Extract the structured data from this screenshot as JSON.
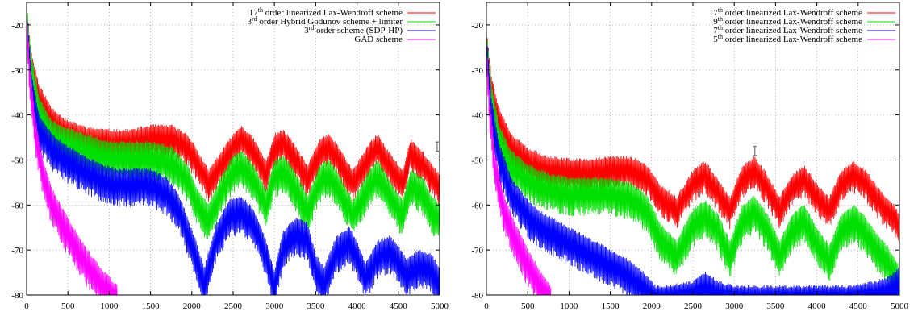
{
  "chart_data": [
    {
      "type": "line",
      "title": "",
      "xlabel": "",
      "ylabel": "",
      "xlim": [
        0,
        5000
      ],
      "ylim": [
        -80,
        -15
      ],
      "x_ticks": [
        "0",
        "500",
        "1000",
        "1500",
        "2000",
        "2500",
        "3000",
        "3500",
        "4000",
        "4500",
        "5000"
      ],
      "y_ticks": [
        "-20",
        "-30",
        "-40",
        "-50",
        "-60",
        "-70",
        "-80"
      ],
      "grid": true,
      "legend_position": "top-right",
      "error_bar": {
        "x": 4970,
        "y_low": -48,
        "y_high": -46
      },
      "series": [
        {
          "name_parts": [
            [
              "17",
              ""
            ],
            [
              "th",
              "sup"
            ],
            [
              " order linearized Lax-Wendroff scheme",
              ""
            ]
          ],
          "color": "#ff0000",
          "x": [
            0,
            60,
            150,
            300,
            500,
            750,
            1000,
            1250,
            1500,
            1750,
            1950,
            2050,
            2200,
            2350,
            2500,
            2600,
            2750,
            2900,
            3000,
            3100,
            3200,
            3400,
            3550,
            3650,
            3750,
            3950,
            4150,
            4250,
            4350,
            4550,
            4650,
            4800,
            4880,
            5000
          ],
          "y": [
            -17,
            -28,
            -35,
            -40,
            -43,
            -44.5,
            -45,
            -45,
            -44,
            -44,
            -46,
            -49,
            -54,
            -50,
            -46,
            -44,
            -47,
            -52,
            -46,
            -45,
            -47,
            -53,
            -47,
            -46,
            -48,
            -54,
            -48,
            -46,
            -49,
            -54,
            -47,
            -50,
            -52,
            -55
          ]
        },
        {
          "name_parts": [
            [
              "3",
              ""
            ],
            [
              "rd",
              "sup"
            ],
            [
              " order Hybrid Godunov scheme + limiter",
              ""
            ]
          ],
          "color": "#00e000",
          "x": [
            0,
            60,
            150,
            300,
            500,
            750,
            1000,
            1250,
            1500,
            1750,
            1950,
            2050,
            2200,
            2350,
            2500,
            2600,
            2750,
            2900,
            3000,
            3100,
            3200,
            3400,
            3550,
            3650,
            3750,
            3950,
            4150,
            4250,
            4350,
            4550,
            4650,
            4800,
            4900,
            5000
          ],
          "y": [
            -17,
            -29,
            -38,
            -43,
            -45,
            -46.5,
            -48,
            -48,
            -48,
            -49,
            -53,
            -58,
            -62,
            -56,
            -51,
            -50,
            -53,
            -59,
            -52,
            -51,
            -53,
            -60,
            -53,
            -52,
            -54,
            -61,
            -54,
            -52,
            -55,
            -61,
            -54,
            -56,
            -60,
            -62
          ]
        },
        {
          "name_parts": [
            [
              "3",
              ""
            ],
            [
              "rd",
              "sup"
            ],
            [
              " order scheme (SDP-HP)",
              ""
            ]
          ],
          "color": "#0000ff",
          "x": [
            0,
            60,
            150,
            300,
            500,
            700,
            900,
            1100,
            1300,
            1500,
            1700,
            1850,
            1950,
            2050,
            2150,
            2300,
            2450,
            2600,
            2750,
            2900,
            3000,
            3100,
            3250,
            3400,
            3500,
            3600,
            3750,
            3900,
            4000,
            4100,
            4250,
            4400,
            4500,
            4600,
            4750,
            4900,
            5000
          ],
          "y": [
            -18,
            -33,
            -42,
            -46,
            -49,
            -51,
            -53,
            -54,
            -54,
            -54,
            -56,
            -60,
            -65,
            -70,
            -76,
            -66,
            -61,
            -60,
            -63,
            -70,
            -77,
            -68,
            -65,
            -66,
            -73,
            -76,
            -69,
            -67,
            -70,
            -75,
            -70,
            -69,
            -71,
            -74,
            -72,
            -73,
            -76
          ]
        },
        {
          "name_parts": [
            [
              "GAD scheme",
              ""
            ]
          ],
          "color": "#ff00ff",
          "x": [
            0,
            40,
            100,
            200,
            300,
            500,
            700,
            900,
            1100
          ],
          "y": [
            -18,
            -31,
            -42,
            -52,
            -58,
            -65,
            -71,
            -76,
            -80
          ]
        }
      ]
    },
    {
      "type": "line",
      "title": "",
      "xlabel": "",
      "ylabel": "",
      "xlim": [
        0,
        5000
      ],
      "ylim": [
        -80,
        -15
      ],
      "x_ticks": [
        "0",
        "500",
        "1000",
        "1500",
        "2000",
        "2500",
        "3000",
        "3500",
        "4000",
        "4500",
        "5000"
      ],
      "y_ticks": [
        "-20",
        "-30",
        "-40",
        "-50",
        "-60",
        "-70",
        "-80"
      ],
      "grid": true,
      "legend_position": "top-right",
      "error_bar": {
        "x": 3250,
        "y_low": -49,
        "y_high": -47
      },
      "series": [
        {
          "name_parts": [
            [
              "17",
              ""
            ],
            [
              "th",
              "sup"
            ],
            [
              " order linearized Lax-Wendroff scheme",
              ""
            ]
          ],
          "color": "#ff0000",
          "x": [
            0,
            60,
            150,
            300,
            500,
            750,
            1000,
            1250,
            1500,
            1750,
            1950,
            2100,
            2300,
            2500,
            2650,
            2800,
            2950,
            3100,
            3250,
            3400,
            3550,
            3700,
            3850,
            4000,
            4150,
            4300,
            4450,
            4600,
            4750,
            4850,
            4950,
            5000
          ],
          "y": [
            -22,
            -33,
            -40,
            -46,
            -49,
            -51,
            -51.5,
            -51.5,
            -51,
            -51,
            -53,
            -57,
            -60,
            -54,
            -52,
            -56,
            -60,
            -53,
            -51,
            -55,
            -60,
            -55,
            -53,
            -57,
            -60,
            -54,
            -52,
            -54,
            -58,
            -60,
            -62,
            -64
          ]
        },
        {
          "name_parts": [
            [
              "9",
              ""
            ],
            [
              "th",
              "sup"
            ],
            [
              " order linearized Lax-Wendroff scheme",
              ""
            ]
          ],
          "color": "#00e000",
          "x": [
            0,
            60,
            150,
            300,
            500,
            750,
            1000,
            1250,
            1500,
            1750,
            1950,
            2100,
            2300,
            2500,
            2650,
            2800,
            2950,
            3100,
            3250,
            3400,
            3550,
            3700,
            3850,
            4000,
            4150,
            4300,
            4450,
            4600,
            4750,
            4850,
            4950,
            5000
          ],
          "y": [
            -23,
            -35,
            -44,
            -50,
            -53,
            -55,
            -56,
            -56,
            -56,
            -57,
            -60,
            -66,
            -70,
            -63,
            -61,
            -64,
            -70,
            -62,
            -60,
            -64,
            -70,
            -64,
            -62,
            -67,
            -71,
            -64,
            -62,
            -65,
            -69,
            -71,
            -74,
            -76
          ]
        },
        {
          "name_parts": [
            [
              "7",
              ""
            ],
            [
              "th",
              "sup"
            ],
            [
              " order linearized Lax-Wendroff scheme",
              ""
            ]
          ],
          "color": "#0000ff",
          "x": [
            0,
            60,
            150,
            300,
            500,
            700,
            900,
            1100,
            1300,
            1500,
            1700,
            1900,
            2050,
            2200,
            2500,
            2650,
            2800,
            3000,
            3300,
            3600,
            4000,
            4400,
            4700,
            4850,
            4950,
            5000
          ],
          "y": [
            -24,
            -38,
            -48,
            -56,
            -61,
            -64,
            -66,
            -68,
            -70,
            -72,
            -74,
            -77,
            -80,
            -80,
            -79,
            -77,
            -79,
            -80,
            -80,
            -80,
            -80,
            -80,
            -79,
            -78,
            -77,
            -76
          ]
        },
        {
          "name_parts": [
            [
              "5",
              ""
            ],
            [
              "th",
              "sup"
            ],
            [
              " order linearized Lax-Wendroff scheme",
              ""
            ]
          ],
          "color": "#ff00ff",
          "x": [
            0,
            40,
            100,
            200,
            300,
            400,
            500,
            600,
            700,
            780
          ],
          "y": [
            -25,
            -38,
            -50,
            -59,
            -64,
            -68,
            -72,
            -75,
            -78,
            -80
          ]
        }
      ]
    }
  ]
}
